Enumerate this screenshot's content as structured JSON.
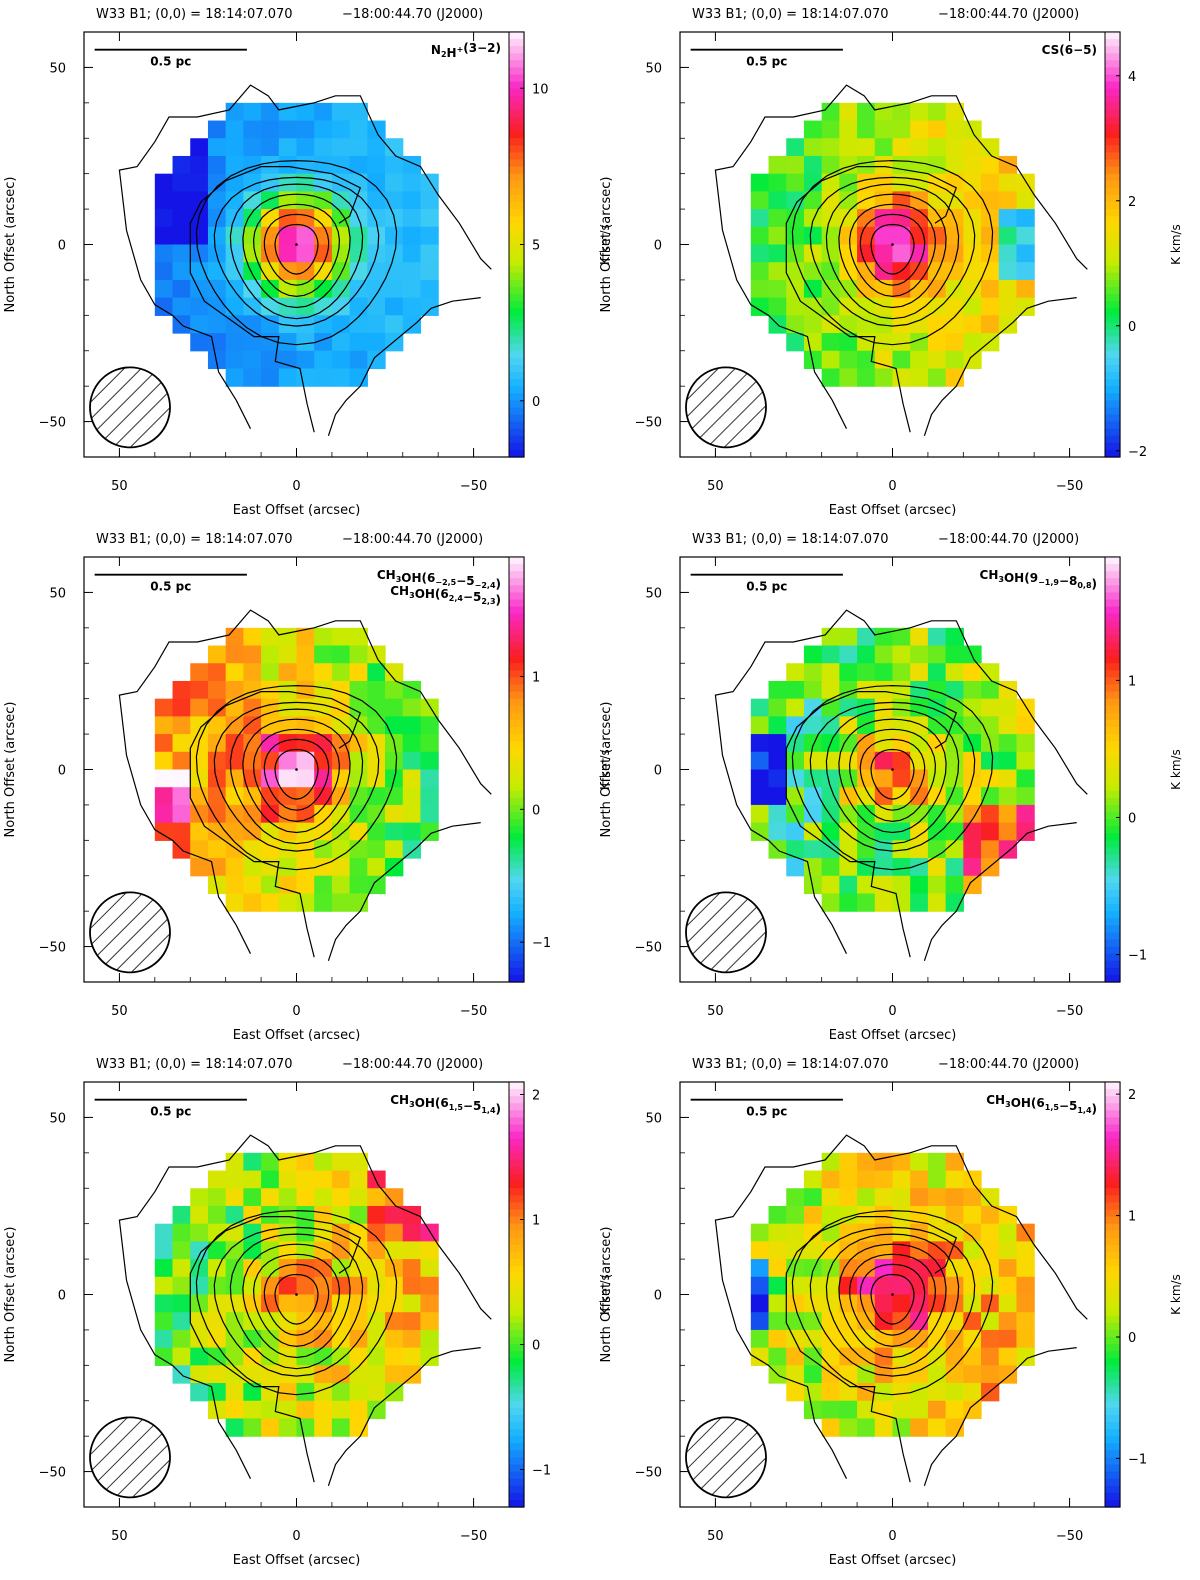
{
  "figure": {
    "colors": {
      "frame": "#000000",
      "contour": "#000000",
      "beam_fill": "#ffffff"
    },
    "icons": {
      "beam": "hatched-circle-beam-icon"
    }
  },
  "chart_data": [
    {
      "type": "heatmap",
      "header": "W33 B1; (0,0) = 18:14:07.070",
      "header_dec": "−18:00:44.70 (J2000)",
      "line_label": "N2H+(3−2)",
      "line_label_rich": [
        [
          "N",
          ""
        ],
        [
          "2",
          "sub"
        ],
        [
          "H",
          ""
        ],
        [
          "+",
          "sup"
        ],
        [
          "(3−2)",
          ""
        ]
      ],
      "scale_bar": "0.5 pc",
      "xlabel": "East Offset (arcsec)",
      "ylabel": "North Offset (arcsec)",
      "colorbar_label": "K km/s",
      "xlim": [
        60,
        -60
      ],
      "ylim": [
        -60,
        60
      ],
      "xticks": [
        50,
        0,
        -50
      ],
      "yticks": [
        50,
        0,
        -50
      ],
      "colorbar_range": [
        -1.8,
        11.8
      ],
      "colorbar_ticks": [
        0,
        5,
        10
      ],
      "peak": 11.0,
      "background": 0.2,
      "east_excess": -0.6,
      "noise": 0.4,
      "variant": 0
    },
    {
      "type": "heatmap",
      "header": "W33 B1; (0,0) = 18:14:07.070",
      "header_dec": "−18:00:44.70 (J2000)",
      "line_label": "CS(6−5)",
      "line_label_rich": [
        [
          "CS(6−5)",
          ""
        ]
      ],
      "scale_bar": "0.5 pc",
      "xlabel": "East Offset (arcsec)",
      "ylabel": "North Offset (arcsec)",
      "colorbar_label": "K km/s",
      "xlim": [
        60,
        -60
      ],
      "ylim": [
        -60,
        60
      ],
      "xticks": [
        50,
        0,
        -50
      ],
      "yticks": [
        50,
        0,
        -50
      ],
      "colorbar_range": [
        -2.1,
        4.7
      ],
      "colorbar_ticks": [
        -2,
        0,
        2,
        4
      ],
      "peak": 4.4,
      "background": 1.0,
      "east_excess": -0.8,
      "noise": 0.55,
      "variant": 1
    },
    {
      "type": "heatmap",
      "header": "W33 B1; (0,0) = 18:14:07.070",
      "header_dec": "−18:00:44.70 (J2000)",
      "line_label": "CH3OH(6_{-2,5}−5_{-2,4}) / CH3OH(6_{2,4}−5_{2,3})",
      "line_label_rich": [
        [
          "CH",
          ""
        ],
        [
          "3",
          "sub"
        ],
        [
          "OH(6",
          ""
        ],
        [
          "−2,5",
          "sub"
        ],
        [
          "−5",
          ""
        ],
        [
          "−2,4",
          "sub"
        ],
        [
          ")",
          ""
        ]
      ],
      "line_label_rich2": [
        [
          "CH",
          ""
        ],
        [
          "3",
          "sub"
        ],
        [
          "OH(6",
          ""
        ],
        [
          "2,4",
          "sub"
        ],
        [
          "−5",
          ""
        ],
        [
          "2,3",
          "sub"
        ],
        [
          ")",
          ""
        ]
      ],
      "scale_bar": "0.5 pc",
      "xlabel": "East Offset (arcsec)",
      "ylabel": "North Offset (arcsec)",
      "colorbar_label": "K km/s",
      "xlim": [
        60,
        -60
      ],
      "ylim": [
        -60,
        60
      ],
      "xticks": [
        50,
        0,
        -50
      ],
      "yticks": [
        50,
        0,
        -50
      ],
      "colorbar_range": [
        -1.3,
        1.9
      ],
      "colorbar_ticks": [
        -1,
        0,
        1
      ],
      "peak": 1.7,
      "background": 0.35,
      "east_excess": 0.5,
      "noise": 0.35,
      "variant": 2
    },
    {
      "type": "heatmap",
      "header": "W33 B1; (0,0) = 18:14:07.070",
      "header_dec": "−18:00:44.70 (J2000)",
      "line_label": "CH3OH(9_{-1,9}−8_{0,8})",
      "line_label_rich": [
        [
          "CH",
          ""
        ],
        [
          "3",
          "sub"
        ],
        [
          "OH(9",
          ""
        ],
        [
          "−1,9",
          "sub"
        ],
        [
          "−8",
          ""
        ],
        [
          "0,8",
          "sub"
        ],
        [
          ")",
          ""
        ]
      ],
      "scale_bar": "0.5 pc",
      "xlabel": "East Offset (arcsec)",
      "ylabel": "North Offset (arcsec)",
      "colorbar_label": "K km/s",
      "xlim": [
        60,
        -60
      ],
      "ylim": [
        -60,
        60
      ],
      "xticks": [
        50,
        0,
        -50
      ],
      "yticks": [
        50,
        0,
        -50
      ],
      "colorbar_range": [
        -1.2,
        1.9
      ],
      "colorbar_ticks": [
        -1,
        0,
        1
      ],
      "peak": 1.1,
      "background": 0.0,
      "east_excess": -0.2,
      "noise": 0.4,
      "variant": 3
    },
    {
      "type": "heatmap",
      "header": "W33 B1; (0,0) = 18:14:07.070",
      "header_dec": "−18:00:44.70 (J2000)",
      "line_label": "CH3OH(6_{1,5}−5_{1,4})",
      "line_label_rich": [
        [
          "CH",
          ""
        ],
        [
          "3",
          "sub"
        ],
        [
          "OH(6",
          ""
        ],
        [
          "1,5",
          "sub"
        ],
        [
          "−5",
          ""
        ],
        [
          "1,4",
          "sub"
        ],
        [
          ")",
          ""
        ]
      ],
      "scale_bar": "0.5 pc",
      "xlabel": "East Offset (arcsec)",
      "ylabel": "North Offset (arcsec)",
      "colorbar_label": "K km/s",
      "xlim": [
        60,
        -60
      ],
      "ylim": [
        -60,
        60
      ],
      "xticks": [
        50,
        0,
        -50
      ],
      "yticks": [
        50,
        0,
        -50
      ],
      "colorbar_range": [
        -1.3,
        2.1
      ],
      "colorbar_ticks": [
        -1,
        0,
        1,
        2
      ],
      "peak": 1.0,
      "background": 0.3,
      "east_excess": -0.4,
      "noise": 0.45,
      "variant": 4
    },
    {
      "type": "heatmap",
      "header": "W33 B1; (0,0) = 18:14:07.070",
      "header_dec": "−18:00:44.70 (J2000)",
      "line_label": "CH3OH(6_{1,5}−5_{1,4})",
      "line_label_rich": [
        [
          "CH",
          ""
        ],
        [
          "3",
          "sub"
        ],
        [
          "OH(6",
          ""
        ],
        [
          "1,5",
          "sub"
        ],
        [
          "−5",
          ""
        ],
        [
          "1,4",
          "sub"
        ],
        [
          ")",
          ""
        ]
      ],
      "scale_bar": "0.5 pc",
      "xlabel": "East Offset (arcsec)",
      "ylabel": "North Offset (arcsec)",
      "colorbar_label": "K km/s",
      "xlim": [
        60,
        -60
      ],
      "ylim": [
        -60,
        60
      ],
      "xticks": [
        50,
        0,
        -50
      ],
      "yticks": [
        50,
        0,
        -50
      ],
      "colorbar_range": [
        -1.4,
        2.1
      ],
      "colorbar_ticks": [
        -1,
        0,
        1,
        2
      ],
      "peak": 1.7,
      "background": 0.45,
      "east_excess": -0.3,
      "noise": 0.45,
      "variant": 5
    }
  ]
}
